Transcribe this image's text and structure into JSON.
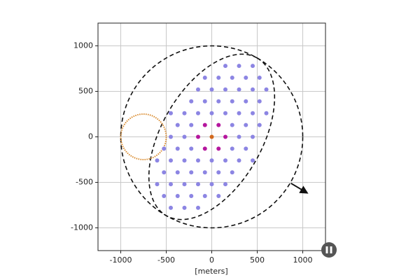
{
  "chart_data": {
    "type": "scatter",
    "xlabel": "[meters]",
    "xlim": [
      -1250,
      1250
    ],
    "ylim": [
      -1250,
      1250
    ],
    "xticks": [
      -1000,
      -500,
      0,
      500,
      1000
    ],
    "yticks": [
      -1000,
      -500,
      0,
      500,
      1000
    ],
    "grid": true,
    "series": [
      {
        "color": "#8c85e3",
        "x": [
          -450,
          -300,
          -150,
          -525,
          -375,
          -225,
          -75,
          75,
          -600,
          -450,
          -300,
          -150,
          0,
          150,
          -525,
          -375,
          -225,
          -75,
          75,
          225,
          -600,
          -450,
          -300,
          -150,
          0,
          150,
          300,
          450,
          -525,
          -375,
          -225,
          225,
          375,
          -450,
          -300,
          300,
          450,
          -375,
          -225,
          225,
          375,
          525,
          -450,
          -300,
          -150,
          0,
          150,
          300,
          450,
          600,
          -225,
          -75,
          75,
          225,
          375,
          525,
          -150,
          0,
          150,
          300,
          450,
          600,
          -75,
          75,
          225,
          375,
          525,
          150,
          300,
          450
        ],
        "y": [
          -780,
          -780,
          -780,
          -650,
          -650,
          -650,
          -650,
          -650,
          -520,
          -520,
          -520,
          -520,
          -520,
          -520,
          -390,
          -390,
          -390,
          -390,
          -390,
          -390,
          -260,
          -260,
          -260,
          -260,
          -260,
          -260,
          -260,
          -260,
          -130,
          -130,
          -130,
          -130,
          -130,
          0,
          0,
          0,
          0,
          130,
          130,
          130,
          130,
          130,
          260,
          260,
          260,
          260,
          260,
          260,
          260,
          260,
          390,
          390,
          390,
          390,
          390,
          390,
          520,
          520,
          520,
          520,
          520,
          520,
          650,
          650,
          650,
          650,
          650,
          780,
          780,
          780
        ]
      },
      {
        "color": "#b5179e",
        "x": [
          -150,
          150,
          -75,
          75,
          -75,
          75
        ],
        "y": [
          0,
          0,
          130,
          130,
          -130,
          -130
        ]
      },
      {
        "color": "#d2691e",
        "x": [
          0
        ],
        "y": [
          0
        ]
      }
    ],
    "ellipses": [
      {
        "cx": 0,
        "cy": 0,
        "rx": 1000,
        "ry": 1000,
        "angle": 0,
        "color": "#111111",
        "dash": "dashed"
      },
      {
        "cx": 0,
        "cy": 0,
        "rx": 1000,
        "ry": 550,
        "angle": 60,
        "color": "#111111",
        "dash": "dashed"
      },
      {
        "cx": -750,
        "cy": 0,
        "rx": 250,
        "ry": 250,
        "angle": 0,
        "color": "#d9892b",
        "dash": "dotted"
      }
    ],
    "arrow": {
      "x": [
        870,
        1046
      ],
      "y": [
        -510,
        -615
      ],
      "color": "#111111"
    }
  }
}
